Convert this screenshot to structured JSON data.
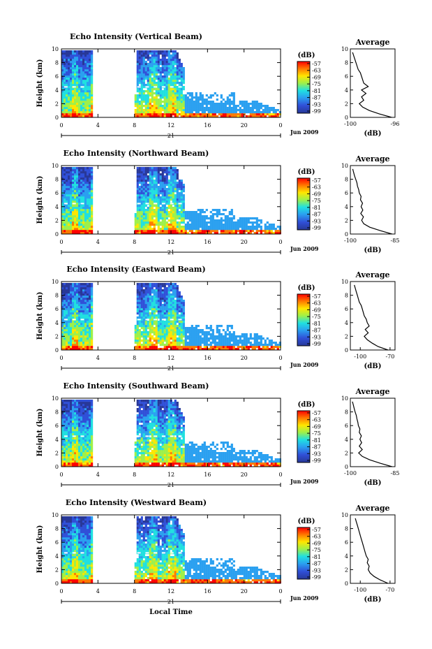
{
  "figure": {
    "xlabel": "Local Time",
    "colorbar_unit": "(dB)",
    "colorbar_ticks": [
      "-57",
      "-63",
      "-69",
      "-75",
      "-81",
      "-87",
      "-93",
      "-99"
    ],
    "colorbar_colors": [
      "#ff0000",
      "#ff7a00",
      "#ffe600",
      "#9ef04a",
      "#20e0e0",
      "#2aa0f0",
      "#3050d8",
      "#283898"
    ],
    "colors": {
      "axis": "#000000",
      "profile_line": "#000000",
      "no_echo": "#ffffff"
    }
  },
  "chart_data": [
    {
      "type": "heatmap",
      "title": "Echo Intensity (Vertical Beam)",
      "ylabel": "Height (km)",
      "xlim": [
        0,
        24
      ],
      "ylim": [
        0,
        10
      ],
      "xticks": [
        "0",
        "4",
        "8",
        "12",
        "16",
        "20",
        "0"
      ],
      "yticks": [
        "0",
        "2",
        "4",
        "6",
        "8",
        "10"
      ],
      "date_marker": "21",
      "date_label": "Jun 2009",
      "data_segments": [
        [
          0,
          3.4
        ],
        [
          8,
          24
        ]
      ],
      "profile": {
        "title": "Average",
        "xlabel": "(dB)",
        "xlim": [
          -100,
          -96
        ],
        "xticks": [
          "-100",
          "-96"
        ],
        "yticks": [
          "0",
          "2",
          "4",
          "6",
          "8",
          "10"
        ],
        "height_km": [
          0,
          0.5,
          1,
          1.5,
          2,
          2.5,
          3,
          3.5,
          4,
          4.5,
          5,
          5.5,
          6,
          6.5,
          7,
          7.5,
          8,
          8.5,
          9,
          9.5
        ],
        "db": [
          -96.3,
          -97.4,
          -98.3,
          -98.9,
          -99.2,
          -98.8,
          -99.0,
          -98.6,
          -99.0,
          -98.4,
          -98.8,
          -98.9,
          -99.0,
          -99.1,
          -99.3,
          -99.4,
          -99.5,
          -99.6,
          -99.7,
          -99.8
        ]
      }
    },
    {
      "type": "heatmap",
      "title": "Echo Intensity (Northward Beam)",
      "ylabel": "Height (km)",
      "xlim": [
        0,
        24
      ],
      "ylim": [
        0,
        10
      ],
      "xticks": [
        "0",
        "4",
        "8",
        "12",
        "16",
        "20",
        "0"
      ],
      "yticks": [
        "0",
        "2",
        "4",
        "6",
        "8",
        "10"
      ],
      "date_marker": "21",
      "date_label": "Jun 2009",
      "data_segments": [
        [
          0,
          3.4
        ],
        [
          8,
          24
        ]
      ],
      "profile": {
        "title": "Average",
        "xlabel": "(dB)",
        "xlim": [
          -100,
          -85
        ],
        "xticks": [
          "-100",
          "-85"
        ],
        "yticks": [
          "0",
          "2",
          "4",
          "6",
          "8",
          "10"
        ],
        "height_km": [
          0,
          0.5,
          1,
          1.5,
          2,
          2.5,
          3,
          3.5,
          4,
          4.5,
          5,
          5.5,
          6,
          6.5,
          7,
          7.5,
          8,
          8.5,
          9,
          9.5
        ],
        "db": [
          -86,
          -90,
          -93.5,
          -95.5,
          -96.2,
          -95.6,
          -96.5,
          -95.8,
          -96.4,
          -95.9,
          -96.6,
          -96.4,
          -97.0,
          -97.2,
          -97.6,
          -97.8,
          -98.2,
          -98.6,
          -98.9,
          -99.2
        ]
      }
    },
    {
      "type": "heatmap",
      "title": "Echo Intensity (Eastward Beam)",
      "ylabel": "Height (km)",
      "xlim": [
        0,
        24
      ],
      "ylim": [
        0,
        10
      ],
      "xticks": [
        "0",
        "4",
        "8",
        "12",
        "16",
        "20",
        "0"
      ],
      "yticks": [
        "0",
        "2",
        "4",
        "6",
        "8",
        "10"
      ],
      "date_marker": "21",
      "date_label": "Jun 2009",
      "data_segments": [
        [
          0,
          3.4
        ],
        [
          8,
          24
        ]
      ],
      "profile": {
        "title": "Average",
        "xlabel": "(dB)",
        "xlim": [
          -110,
          -65
        ],
        "xticks": [
          "-100",
          "-70"
        ],
        "yticks": [
          "0",
          "2",
          "4",
          "6",
          "8",
          "10"
        ],
        "height_km": [
          0,
          0.5,
          1,
          1.5,
          2,
          2.5,
          3,
          3.5,
          4,
          4.5,
          5,
          5.5,
          6,
          6.5,
          7,
          7.5,
          8,
          8.5,
          9,
          9.5
        ],
        "db": [
          -72,
          -82,
          -88,
          -93,
          -96,
          -92,
          -95,
          -91,
          -93,
          -94,
          -96,
          -97,
          -98,
          -99,
          -101,
          -102,
          -103,
          -104,
          -105,
          -106
        ]
      }
    },
    {
      "type": "heatmap",
      "title": "Echo Intensity (Southward Beam)",
      "ylabel": "Height (km)",
      "xlim": [
        0,
        24
      ],
      "ylim": [
        0,
        10
      ],
      "xticks": [
        "0",
        "4",
        "8",
        "12",
        "16",
        "20",
        "0"
      ],
      "yticks": [
        "0",
        "2",
        "4",
        "6",
        "8",
        "10"
      ],
      "date_marker": "21",
      "date_label": "Jun 2009",
      "data_segments": [
        [
          0,
          3.4
        ],
        [
          8,
          24
        ]
      ],
      "profile": {
        "title": "Average",
        "xlabel": "(dB)",
        "xlim": [
          -100,
          -85
        ],
        "xticks": [
          "-100",
          "-85"
        ],
        "yticks": [
          "0",
          "2",
          "4",
          "6",
          "8",
          "10"
        ],
        "height_km": [
          0,
          0.5,
          1,
          1.5,
          2,
          2.5,
          3,
          3.5,
          4,
          4.5,
          5,
          5.5,
          6,
          6.5,
          7,
          7.5,
          8,
          8.5,
          9,
          9.5
        ],
        "db": [
          -86,
          -90,
          -93.5,
          -96.0,
          -97.2,
          -96.0,
          -97.0,
          -96.2,
          -96.8,
          -96.3,
          -97.0,
          -96.8,
          -97.3,
          -97.5,
          -97.8,
          -98.0,
          -98.4,
          -98.7,
          -99.0,
          -99.3
        ]
      }
    },
    {
      "type": "heatmap",
      "title": "Echo Intensity (Westward Beam)",
      "ylabel": "Height (km)",
      "xlim": [
        0,
        24
      ],
      "ylim": [
        0,
        10
      ],
      "xticks": [
        "0",
        "4",
        "8",
        "12",
        "16",
        "20",
        "0"
      ],
      "yticks": [
        "0",
        "2",
        "4",
        "6",
        "8",
        "10"
      ],
      "date_marker": "21",
      "date_label": "Jun 2009",
      "data_segments": [
        [
          0,
          3.4
        ],
        [
          8,
          24
        ]
      ],
      "profile": {
        "title": "Average",
        "xlabel": "(dB)",
        "xlim": [
          -110,
          -65
        ],
        "xticks": [
          "-100",
          "-70"
        ],
        "yticks": [
          "0",
          "2",
          "4",
          "6",
          "8",
          "10"
        ],
        "height_km": [
          0,
          0.5,
          1,
          1.5,
          2,
          2.5,
          3,
          3.5,
          4,
          4.5,
          5,
          5.5,
          6,
          6.5,
          7,
          7.5,
          8,
          8.5,
          9,
          9.5
        ],
        "db": [
          -72,
          -80,
          -86,
          -90,
          -92,
          -91,
          -93,
          -92,
          -94,
          -95,
          -96,
          -97,
          -98,
          -99,
          -100,
          -101,
          -102,
          -103,
          -104,
          -105
        ]
      }
    }
  ]
}
